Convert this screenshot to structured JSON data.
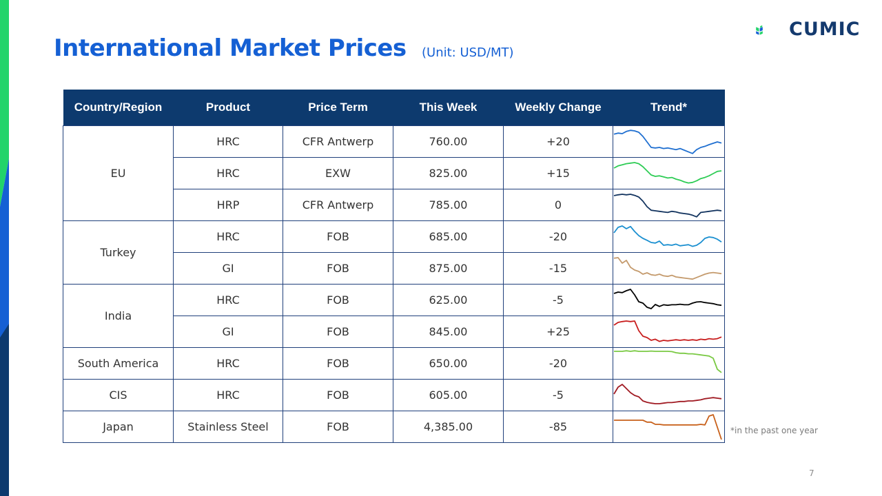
{
  "slide": {
    "title": "International Market Prices",
    "unit": "(Unit: USD/MT)",
    "logo_text": "CUMIC",
    "footnote": "*in the past one year",
    "page_number": "7"
  },
  "colors": {
    "title": "#1560d4",
    "header_bg": "#0d3a6e",
    "positive": "#22a84a",
    "negative": "#d6322e",
    "zero": "#1560d4"
  },
  "table": {
    "headers": [
      "Country/Region",
      "Product",
      "Price Term",
      "This Week",
      "Weekly Change",
      "Trend*"
    ],
    "groups": [
      {
        "region": "EU",
        "rows": [
          {
            "product": "HRC",
            "term": "CFR Antwerp",
            "price": "760.00",
            "change": "+20",
            "trend_color": "#1f6fd0",
            "trend": [
              0.22,
              0.18,
              0.2,
              0.12,
              0.08,
              0.1,
              0.15,
              0.3,
              0.5,
              0.7,
              0.72,
              0.7,
              0.74,
              0.72,
              0.75,
              0.78,
              0.74,
              0.8,
              0.86,
              0.92,
              0.78,
              0.7,
              0.66,
              0.6,
              0.55,
              0.5,
              0.54
            ]
          },
          {
            "product": "HRC",
            "term": "EXW",
            "price": "825.00",
            "change": "+15",
            "trend_color": "#2ecc55",
            "trend": [
              0.3,
              0.22,
              0.18,
              0.14,
              0.12,
              0.1,
              0.14,
              0.25,
              0.4,
              0.55,
              0.6,
              0.58,
              0.62,
              0.66,
              0.64,
              0.7,
              0.74,
              0.8,
              0.84,
              0.82,
              0.76,
              0.68,
              0.64,
              0.58,
              0.5,
              0.42,
              0.4
            ]
          },
          {
            "product": "HRP",
            "term": "CFR Antwerp",
            "price": "785.00",
            "change": "0",
            "trend_color": "#12335e",
            "trend": [
              0.15,
              0.12,
              0.1,
              0.12,
              0.1,
              0.14,
              0.2,
              0.35,
              0.55,
              0.68,
              0.7,
              0.72,
              0.74,
              0.76,
              0.72,
              0.74,
              0.78,
              0.8,
              0.82,
              0.86,
              0.92,
              0.76,
              0.74,
              0.72,
              0.7,
              0.68,
              0.7
            ]
          }
        ]
      },
      {
        "region": "Turkey",
        "rows": [
          {
            "product": "HRC",
            "term": "FOB",
            "price": "685.00",
            "change": "-20",
            "trend_color": "#1a8fd0",
            "trend": [
              0.35,
              0.15,
              0.1,
              0.2,
              0.12,
              0.3,
              0.45,
              0.55,
              0.62,
              0.7,
              0.72,
              0.65,
              0.8,
              0.78,
              0.8,
              0.76,
              0.82,
              0.8,
              0.78,
              0.84,
              0.8,
              0.7,
              0.55,
              0.5,
              0.52,
              0.58,
              0.68
            ]
          },
          {
            "product": "GI",
            "term": "FOB",
            "price": "875.00",
            "change": "-15",
            "trend_color": "#c49a6c",
            "trend": [
              0.12,
              0.1,
              0.3,
              0.2,
              0.45,
              0.55,
              0.6,
              0.7,
              0.65,
              0.72,
              0.74,
              0.7,
              0.76,
              0.78,
              0.74,
              0.8,
              0.82,
              0.84,
              0.86,
              0.88,
              0.82,
              0.76,
              0.7,
              0.66,
              0.64,
              0.66,
              0.68
            ]
          }
        ]
      },
      {
        "region": "India",
        "rows": [
          {
            "product": "HRC",
            "term": "FOB",
            "price": "625.00",
            "change": "-5",
            "trend_color": "#000000",
            "trend": [
              0.25,
              0.2,
              0.22,
              0.15,
              0.1,
              0.3,
              0.55,
              0.6,
              0.75,
              0.8,
              0.65,
              0.72,
              0.66,
              0.68,
              0.66,
              0.66,
              0.64,
              0.66,
              0.66,
              0.6,
              0.56,
              0.55,
              0.58,
              0.6,
              0.62,
              0.66,
              0.68
            ]
          },
          {
            "product": "GI",
            "term": "FOB",
            "price": "845.00",
            "change": "+25",
            "trend_color": "#c81d1d",
            "trend": [
              0.25,
              0.15,
              0.12,
              0.1,
              0.12,
              0.1,
              0.45,
              0.65,
              0.7,
              0.8,
              0.76,
              0.84,
              0.8,
              0.82,
              0.8,
              0.78,
              0.8,
              0.78,
              0.8,
              0.78,
              0.8,
              0.76,
              0.78,
              0.74,
              0.76,
              0.74,
              0.68
            ]
          }
        ]
      },
      {
        "region": "South America",
        "rows": [
          {
            "product": "HRC",
            "term": "FOB",
            "price": "650.00",
            "change": "-20",
            "trend_color": "#7ac943",
            "trend": [
              0.05,
              0.05,
              0.05,
              0.03,
              0.05,
              0.03,
              0.05,
              0.05,
              0.05,
              0.04,
              0.05,
              0.05,
              0.05,
              0.05,
              0.06,
              0.1,
              0.12,
              0.12,
              0.14,
              0.14,
              0.16,
              0.18,
              0.2,
              0.22,
              0.3,
              0.7,
              0.82
            ]
          }
        ]
      },
      {
        "region": "CIS",
        "rows": [
          {
            "product": "HRC",
            "term": "FOB",
            "price": "605.00",
            "change": "-5",
            "trend_color": "#a01a22",
            "trend": [
              0.45,
              0.2,
              0.1,
              0.25,
              0.4,
              0.5,
              0.55,
              0.7,
              0.75,
              0.78,
              0.8,
              0.8,
              0.78,
              0.76,
              0.76,
              0.74,
              0.72,
              0.72,
              0.7,
              0.7,
              0.68,
              0.66,
              0.62,
              0.6,
              0.58,
              0.6,
              0.62
            ]
          }
        ]
      },
      {
        "region": "Japan",
        "rows": [
          {
            "product": "Stainless Steel",
            "term": "FOB",
            "price": "4,385.00",
            "change": "-85",
            "trend_color": "#c8601a",
            "trend": [
              0.25,
              0.25,
              0.25,
              0.25,
              0.25,
              0.25,
              0.25,
              0.25,
              0.32,
              0.32,
              0.4,
              0.4,
              0.42,
              0.42,
              0.42,
              0.42,
              0.42,
              0.42,
              0.42,
              0.42,
              0.42,
              0.4,
              0.42,
              0.1,
              0.05,
              0.5,
              0.95
            ]
          }
        ]
      }
    ]
  }
}
